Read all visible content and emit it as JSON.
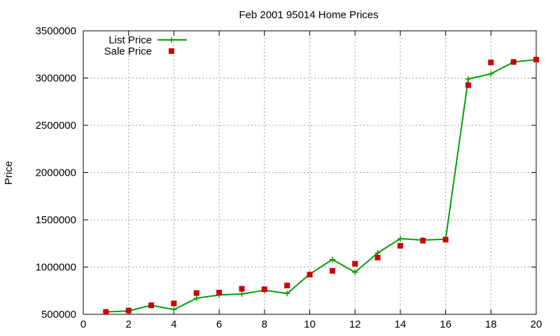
{
  "chart_data": {
    "type": "line",
    "title": "Feb 2001 95014 Home Prices",
    "xlabel": "",
    "ylabel": "Price",
    "xlim": [
      0,
      20
    ],
    "ylim": [
      500000,
      3500000
    ],
    "xticks": [
      0,
      2,
      4,
      6,
      8,
      10,
      12,
      14,
      16,
      18,
      20
    ],
    "yticks": [
      500000,
      1000000,
      1500000,
      2000000,
      2500000,
      3000000,
      3500000
    ],
    "grid": true,
    "legend_position": "top-left",
    "series": [
      {
        "name": "List Price",
        "style": "line-plus",
        "color": "#00a000",
        "x": [
          1,
          2,
          3,
          4,
          5,
          6,
          7,
          8,
          9,
          10,
          11,
          12,
          13,
          14,
          15,
          16,
          17,
          18,
          19,
          20
        ],
        "values": [
          525000,
          535000,
          595000,
          550000,
          670000,
          705000,
          715000,
          755000,
          720000,
          925000,
          1080000,
          945000,
          1150000,
          1300000,
          1285000,
          1295000,
          2990000,
          3045000,
          3170000,
          3195000
        ]
      },
      {
        "name": "Sale Price",
        "style": "square",
        "color": "#cc0000",
        "x": [
          1,
          2,
          3,
          4,
          5,
          6,
          7,
          8,
          9,
          10,
          11,
          12,
          13,
          14,
          15,
          16,
          17,
          18,
          19,
          20
        ],
        "values": [
          525000,
          540000,
          595000,
          615000,
          725000,
          730000,
          770000,
          765000,
          805000,
          920000,
          960000,
          1035000,
          1100000,
          1225000,
          1280000,
          1290000,
          2925000,
          3165000,
          3170000,
          3195000
        ]
      }
    ]
  }
}
